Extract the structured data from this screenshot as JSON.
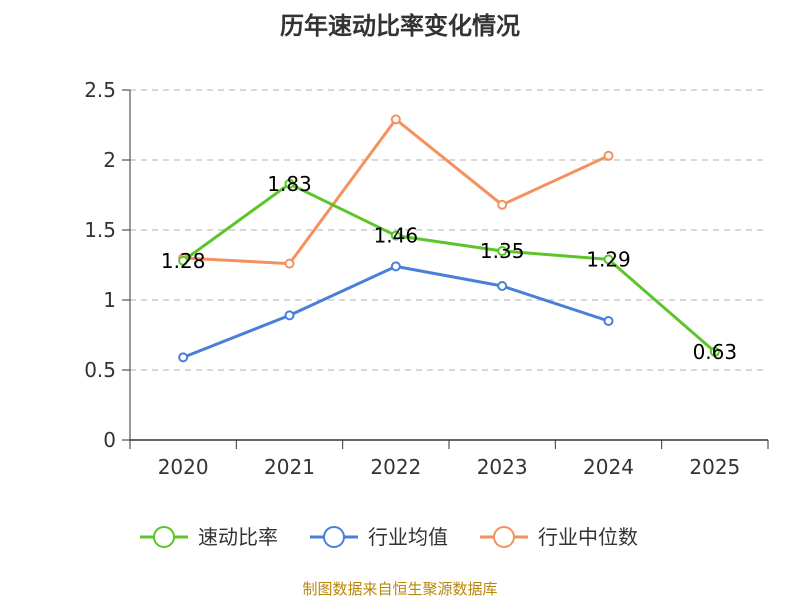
{
  "chart_data": {
    "type": "line",
    "title": "历年速动比率变化情况",
    "categories": [
      "2020",
      "2021",
      "2022",
      "2023",
      "2024",
      "2025"
    ],
    "ylim": [
      0,
      2.5
    ],
    "yticks": [
      0,
      0.5,
      1,
      1.5,
      2,
      2.5
    ],
    "ytick_labels": [
      "0",
      "0.5",
      "1",
      "1.5",
      "2",
      "2.5"
    ],
    "grid": true,
    "legend_position": "bottom",
    "series": [
      {
        "name": "速动比率",
        "color": "#5cc529",
        "values": [
          1.28,
          1.83,
          1.46,
          1.35,
          1.29,
          0.63
        ],
        "labels": [
          "1.28",
          "1.83",
          "1.46",
          "1.35",
          "1.29",
          "0.63"
        ]
      },
      {
        "name": "行业均值",
        "color": "#4a7fd9",
        "values": [
          0.59,
          0.89,
          1.24,
          1.1,
          0.85,
          null
        ]
      },
      {
        "name": "行业中位数",
        "color": "#f5915e",
        "values": [
          1.3,
          1.26,
          2.29,
          1.68,
          2.03,
          null
        ]
      }
    ]
  },
  "source": "制图数据来自恒生聚源数据库"
}
